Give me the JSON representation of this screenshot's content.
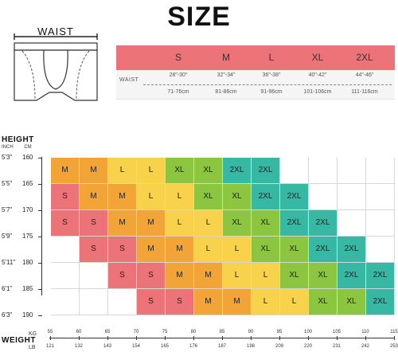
{
  "title": "SIZE",
  "illustration": {
    "waist_label": "WAIST"
  },
  "colors": {
    "S": "#ec7378",
    "M": "#f2a536",
    "L": "#f7d24a",
    "XL": "#8cc641",
    "2XL": "#36b8a5",
    "empty": "#ffffff",
    "header": "#ec7378"
  },
  "size_table": {
    "sizes": [
      "S",
      "M",
      "L",
      "XL",
      "2XL"
    ],
    "row_label": "WAIST",
    "inches": [
      "28\"-30\"",
      "32\"-34\"",
      "36\"-38\"",
      "40\"-42\"",
      "44\"-46\""
    ],
    "cm": [
      "71-76cm",
      "81-86cm",
      "91-96cm",
      "101-106cm",
      "111-116cm"
    ]
  },
  "height_axis": {
    "title": "HEIGHT",
    "unit_in": "INCH",
    "unit_cm": "CM",
    "labels": [
      {
        "in": "5'3\"",
        "cm": "160"
      },
      {
        "in": "5'5\"",
        "cm": "165"
      },
      {
        "in": "5'7\"",
        "cm": "170"
      },
      {
        "in": "5'9\"",
        "cm": "175"
      },
      {
        "in": "5'11\"",
        "cm": "180"
      },
      {
        "in": "6'1\"",
        "cm": "185"
      },
      {
        "in": "6'3\"",
        "cm": "190"
      }
    ]
  },
  "weight_axis": {
    "title": "WEIGHT",
    "unit_kg": "KG",
    "unit_lb": "LB",
    "kg": [
      "55",
      "60",
      "65",
      "70",
      "75",
      "80",
      "85",
      "90",
      "95",
      "100",
      "105",
      "110",
      "115"
    ],
    "lb": [
      "121",
      "132",
      "143",
      "154",
      "165",
      "176",
      "187",
      "198",
      "209",
      "220",
      "231",
      "242",
      "253"
    ]
  },
  "grid": [
    [
      "M",
      "M",
      "L",
      "L",
      "XL",
      "XL",
      "2XL",
      "2XL",
      "",
      "",
      "",
      ""
    ],
    [
      "S",
      "M",
      "M",
      "L",
      "L",
      "XL",
      "XL",
      "2XL",
      "2XL",
      "",
      "",
      ""
    ],
    [
      "S",
      "S",
      "M",
      "M",
      "L",
      "L",
      "XL",
      "XL",
      "2XL",
      "2XL",
      "",
      ""
    ],
    [
      "",
      "S",
      "S",
      "M",
      "M",
      "L",
      "L",
      "XL",
      "XL",
      "2XL",
      "2XL",
      ""
    ],
    [
      "",
      "",
      "S",
      "S",
      "M",
      "M",
      "L",
      "L",
      "XL",
      "XL",
      "2XL",
      "2XL"
    ],
    [
      "",
      "",
      "",
      "S",
      "S",
      "M",
      "M",
      "L",
      "L",
      "XL",
      "XL",
      "2XL"
    ]
  ]
}
